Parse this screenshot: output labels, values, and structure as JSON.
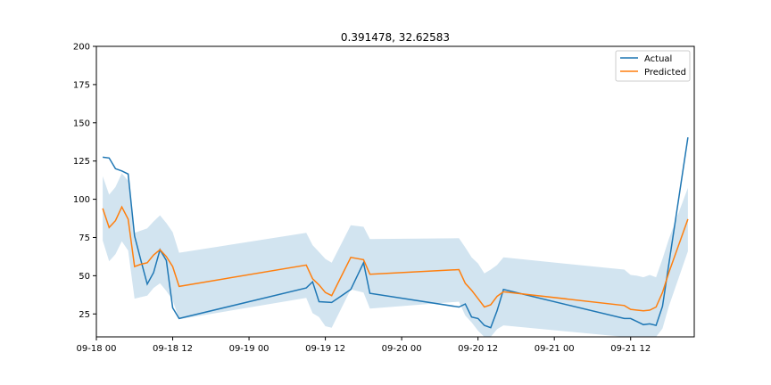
{
  "chart_data": {
    "type": "line",
    "title": "0.391478, 32.62583",
    "xlabel": "",
    "ylabel": "",
    "x_ticks": [
      "09-18 00",
      "09-18 12",
      "09-19 00",
      "09-19 12",
      "09-20 00",
      "09-20 12",
      "09-21 00",
      "09-21 12"
    ],
    "y_ticks": [
      25,
      50,
      75,
      100,
      125,
      150,
      175,
      200
    ],
    "xlim": [
      "2023-09-18 00:00",
      "2023-09-21 22:00"
    ],
    "ylim": [
      10,
      200
    ],
    "grid": false,
    "legend_position": "top-right",
    "series": [
      {
        "name": "Actual",
        "color": "#1f77b4",
        "points": [
          [
            "2023-09-18 01:00",
            127.5
          ],
          [
            "2023-09-18 02:00",
            127.0
          ],
          [
            "2023-09-18 03:00",
            120.0
          ],
          [
            "2023-09-18 04:00",
            118.5
          ],
          [
            "2023-09-18 05:00",
            116.5
          ],
          [
            "2023-09-18 06:00",
            76.0
          ],
          [
            "2023-09-18 07:00",
            60.0
          ],
          [
            "2023-09-18 08:00",
            44.5
          ],
          [
            "2023-09-18 09:00",
            52.0
          ],
          [
            "2023-09-18 10:00",
            67.0
          ],
          [
            "2023-09-18 11:00",
            60.0
          ],
          [
            "2023-09-18 12:00",
            29.0
          ],
          [
            "2023-09-18 13:00",
            22.0
          ],
          [
            "2023-09-19 09:00",
            42.0
          ],
          [
            "2023-09-19 10:00",
            46.0
          ],
          [
            "2023-09-19 11:00",
            33.0
          ],
          [
            "2023-09-19 13:00",
            32.5
          ],
          [
            "2023-09-19 16:00",
            41.0
          ],
          [
            "2023-09-19 18:00",
            58.5
          ],
          [
            "2023-09-19 19:00",
            38.5
          ],
          [
            "2023-09-20 09:00",
            29.5
          ],
          [
            "2023-09-20 10:00",
            31.5
          ],
          [
            "2023-09-20 11:00",
            23.0
          ],
          [
            "2023-09-20 12:00",
            22.0
          ],
          [
            "2023-09-20 13:00",
            17.5
          ],
          [
            "2023-09-20 14:00",
            16.0
          ],
          [
            "2023-09-20 15:00",
            27.0
          ],
          [
            "2023-09-20 16:00",
            41.0
          ],
          [
            "2023-09-21 11:00",
            22.0
          ],
          [
            "2023-09-21 12:00",
            22.0
          ],
          [
            "2023-09-21 13:00",
            20.0
          ],
          [
            "2023-09-21 14:00",
            18.0
          ],
          [
            "2023-09-21 15:00",
            18.5
          ],
          [
            "2023-09-21 16:00",
            17.5
          ],
          [
            "2023-09-21 17:00",
            30.0
          ],
          [
            "2023-09-21 21:00",
            140.5
          ]
        ]
      },
      {
        "name": "Predicted",
        "color": "#ff7f0e",
        "band_color": "#1f77b4",
        "points": [
          [
            "2023-09-18 01:00",
            94.0,
            115.0,
            73.0
          ],
          [
            "2023-09-18 02:00",
            81.5,
            103.0,
            59.5
          ],
          [
            "2023-09-18 03:00",
            86.0,
            108.0,
            64.0
          ],
          [
            "2023-09-18 04:00",
            95.0,
            117.0,
            72.5
          ],
          [
            "2023-09-18 05:00",
            87.0,
            112.0,
            66.5
          ],
          [
            "2023-09-18 06:00",
            56.0,
            78.0,
            35.0
          ],
          [
            "2023-09-18 07:00",
            57.5,
            79.5,
            36.0
          ],
          [
            "2023-09-18 08:00",
            58.5,
            81.0,
            37.0
          ],
          [
            "2023-09-18 09:00",
            63.5,
            85.5,
            42.0
          ],
          [
            "2023-09-18 10:00",
            67.0,
            89.5,
            45.0
          ],
          [
            "2023-09-18 11:00",
            62.5,
            84.5,
            40.0
          ],
          [
            "2023-09-18 12:00",
            56.0,
            78.5,
            34.0
          ],
          [
            "2023-09-18 13:00",
            43.0,
            65.0,
            21.5
          ],
          [
            "2023-09-19 09:00",
            57.0,
            78.0,
            35.5
          ],
          [
            "2023-09-19 10:00",
            48.0,
            70.0,
            25.5
          ],
          [
            "2023-09-19 11:00",
            44.0,
            65.5,
            23.0
          ],
          [
            "2023-09-19 12:00",
            39.0,
            61.0,
            17.0
          ],
          [
            "2023-09-19 13:00",
            37.0,
            58.5,
            16.0
          ],
          [
            "2023-09-19 16:00",
            62.0,
            83.0,
            41.0
          ],
          [
            "2023-09-19 18:00",
            60.5,
            82.0,
            39.0
          ],
          [
            "2023-09-19 19:00",
            51.0,
            74.0,
            28.5
          ],
          [
            "2023-09-20 09:00",
            54.0,
            74.5,
            33.0
          ],
          [
            "2023-09-20 10:00",
            45.0,
            68.5,
            24.0
          ],
          [
            "2023-09-20 11:00",
            40.5,
            62.0,
            19.5
          ],
          [
            "2023-09-20 12:00",
            35.0,
            58.0,
            14.0
          ],
          [
            "2023-09-20 13:00",
            29.5,
            51.5,
            9.5
          ],
          [
            "2023-09-20 14:00",
            31.0,
            54.0,
            10.0
          ],
          [
            "2023-09-20 15:00",
            36.5,
            57.0,
            15.0
          ],
          [
            "2023-09-20 16:00",
            39.5,
            62.0,
            17.5
          ],
          [
            "2023-09-21 11:00",
            30.5,
            54.0,
            8.0
          ],
          [
            "2023-09-21 12:00",
            28.0,
            50.5,
            7.0
          ],
          [
            "2023-09-21 13:00",
            27.5,
            50.0,
            6.0
          ],
          [
            "2023-09-21 14:00",
            27.0,
            49.0,
            6.0
          ],
          [
            "2023-09-21 15:00",
            27.5,
            50.5,
            5.5
          ],
          [
            "2023-09-21 16:00",
            29.5,
            49.0,
            7.5
          ],
          [
            "2023-09-21 17:00",
            39.0,
            61.0,
            15.5
          ],
          [
            "2023-09-21 18:00",
            52.0,
            74.0,
            30.0
          ],
          [
            "2023-09-21 21:00",
            87.0,
            107.5,
            66.0
          ]
        ]
      }
    ]
  }
}
